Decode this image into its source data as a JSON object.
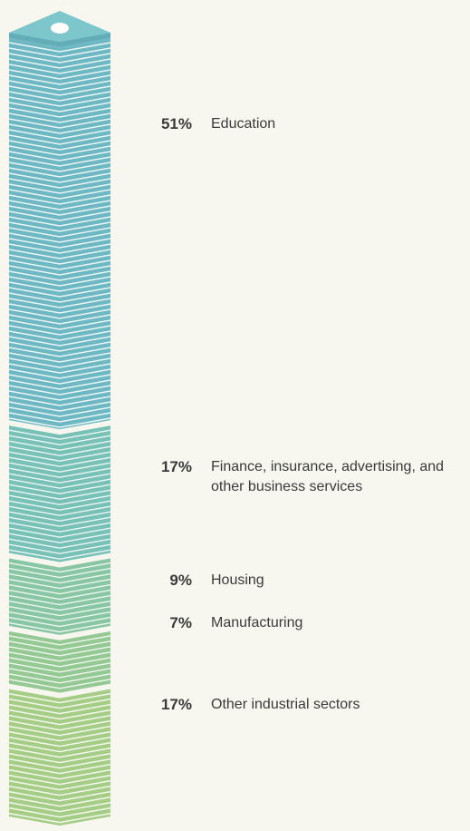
{
  "chart_data": {
    "type": "stack",
    "categories": [
      "Education",
      "Finance, insurance, advertising, and other business services",
      "Housing",
      "Manufacturing",
      "Other industrial sectors"
    ],
    "values": [
      51,
      17,
      9,
      7,
      17
    ],
    "value_labels": [
      "51%",
      "17%",
      "9%",
      "7%",
      "17%"
    ],
    "colors": [
      "#6db8c2",
      "#78c1b6",
      "#88c6a4",
      "#95c994",
      "#a6cd85"
    ]
  }
}
